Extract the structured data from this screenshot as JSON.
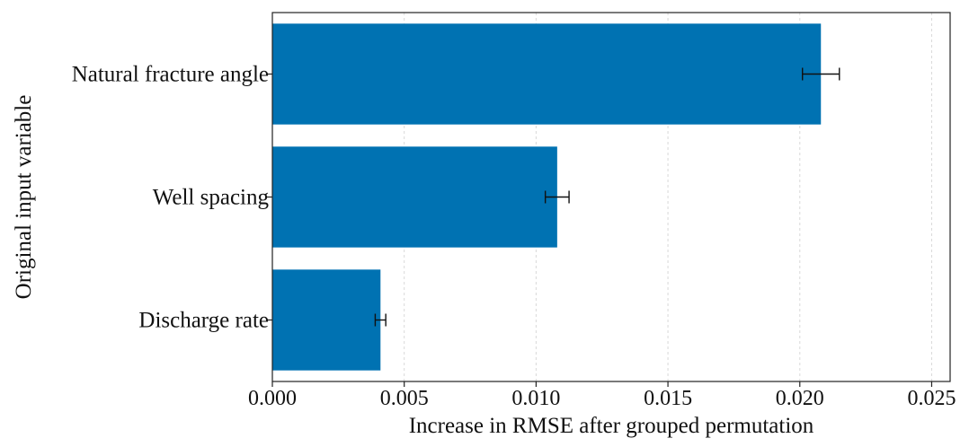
{
  "chart_data": {
    "type": "bar",
    "orientation": "horizontal",
    "xlabel": "Increase in RMSE after grouped permutation",
    "ylabel": "Original input variable",
    "xlim": [
      0,
      0.0257
    ],
    "xticks": [
      "0.000",
      "0.005",
      "0.010",
      "0.015",
      "0.020",
      "0.025"
    ],
    "xtick_values": [
      0,
      0.005,
      0.01,
      0.015,
      0.02,
      0.025
    ],
    "grid": "vertical dashed",
    "colors": {
      "bar": "#0072B2",
      "error_bar": "#111111",
      "grid": "#d9d9d9"
    },
    "categories": [
      "Natural fracture angle",
      "Well spacing",
      "Discharge rate"
    ],
    "values": [
      0.0208,
      0.0108,
      0.0041
    ],
    "error": [
      0.0007,
      0.00045,
      0.0002
    ]
  }
}
